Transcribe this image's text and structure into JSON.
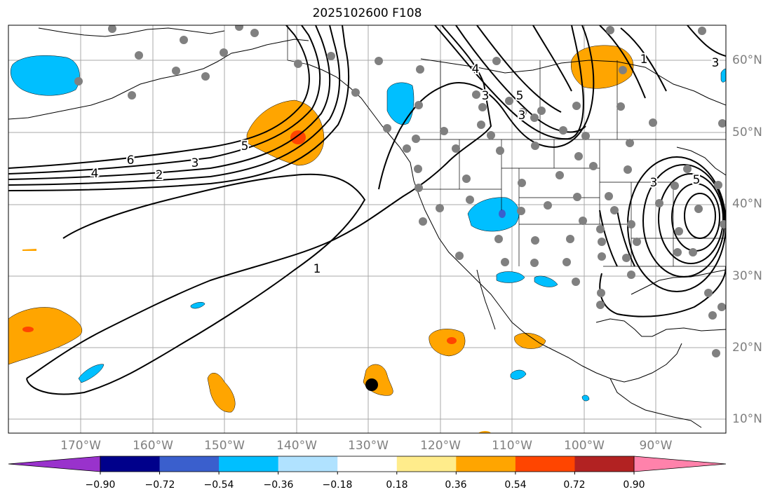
{
  "title": "2025102600 F108",
  "lat_labels": [
    "60°N",
    "50°N",
    "40°N",
    "30°N",
    "20°N",
    "10°N"
  ],
  "lon_labels": [
    "170°W",
    "160°W",
    "150°W",
    "140°W",
    "130°W",
    "120°W",
    "110°W",
    "100°W",
    "90°W"
  ],
  "contour_labels": [
    "6",
    "5",
    "4",
    "3",
    "2",
    "1",
    "4",
    "3",
    "5",
    "3",
    "1",
    "3",
    "3",
    "5"
  ],
  "colorbar": {
    "colors": [
      "#9932cc",
      "#00008b",
      "#3a5fcd",
      "#00bfff",
      "#b0e2ff",
      "#ffffff",
      "#ffec8b",
      "#ffa500",
      "#ff4500",
      "#b22222",
      "#ff82ab"
    ],
    "tick_labels": [
      "−0.90",
      "−0.72",
      "−0.54",
      "−0.36",
      "−0.18",
      "0.18",
      "0.36",
      "0.54",
      "0.72",
      "0.90"
    ]
  },
  "grid_color": "#a9a9a9",
  "station_color": "#808080"
}
